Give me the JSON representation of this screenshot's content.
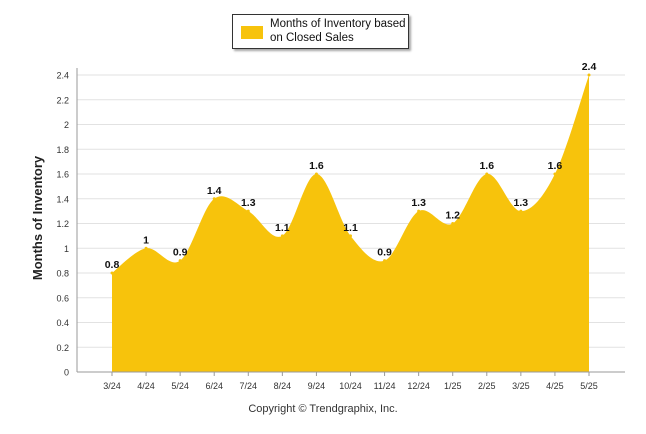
{
  "legend": {
    "label": "Months of Inventory based on Closed Sales"
  },
  "copyright": "Copyright © Trendgraphix, Inc.",
  "colors": {
    "series": "#f7c30c",
    "grid": "#e2e2e2",
    "axis": "#666666",
    "text": "#111111"
  },
  "chart_data": {
    "type": "area",
    "title": "",
    "xlabel": "",
    "ylabel": "Months of Inventory",
    "ylim": [
      0,
      2.4
    ],
    "yticks": [
      "0",
      "0.2",
      "0.4",
      "0.6",
      "0.8",
      "1",
      "1.2",
      "1.4",
      "1.6",
      "1.8",
      "2",
      "2.2",
      "2.4"
    ],
    "grid": true,
    "legend_position": "top-center",
    "categories": [
      "3/24",
      "4/24",
      "5/24",
      "6/24",
      "7/24",
      "8/24",
      "9/24",
      "10/24",
      "11/24",
      "12/24",
      "1/25",
      "2/25",
      "3/25",
      "4/25",
      "5/25"
    ],
    "series": [
      {
        "name": "Months of Inventory based on Closed Sales",
        "values": [
          0.8,
          1,
          0.9,
          1.4,
          1.3,
          1.1,
          1.6,
          1.1,
          0.9,
          1.3,
          1.2,
          1.6,
          1.3,
          1.6,
          2.4
        ],
        "labels": [
          "0.8",
          "1",
          "0.9",
          "1.4",
          "1.3",
          "1.1",
          "1.6",
          "1.1",
          "0.9",
          "1.3",
          "1.2",
          "1.6",
          "1.3",
          "1.6",
          "2.4"
        ]
      }
    ]
  }
}
